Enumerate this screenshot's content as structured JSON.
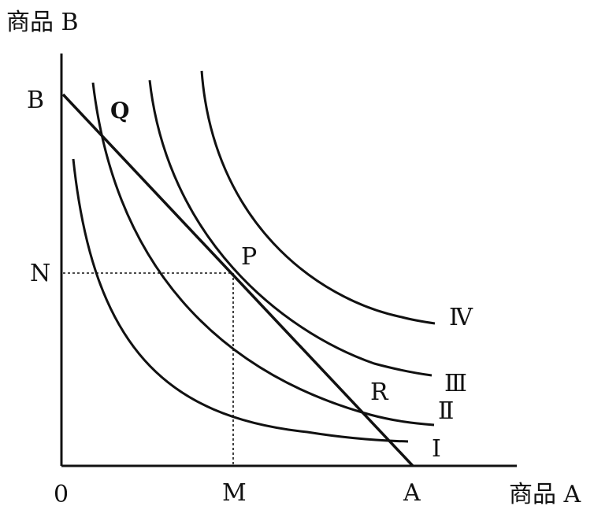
{
  "diagram": {
    "y_axis_title": "商品 B",
    "x_axis_title": "商品 A",
    "origin": "0",
    "budget_intercepts": {
      "y": "B",
      "x": "A"
    },
    "tangent_point": "P",
    "intersection_points": {
      "upper": "Q",
      "lower": "R"
    },
    "guide_labels": {
      "y": "N",
      "x": "M"
    },
    "curves": [
      {
        "id": "I",
        "label": "Ⅰ"
      },
      {
        "id": "II",
        "label": "Ⅱ"
      },
      {
        "id": "III",
        "label": "Ⅲ"
      },
      {
        "id": "IV",
        "label": "Ⅳ"
      }
    ]
  }
}
